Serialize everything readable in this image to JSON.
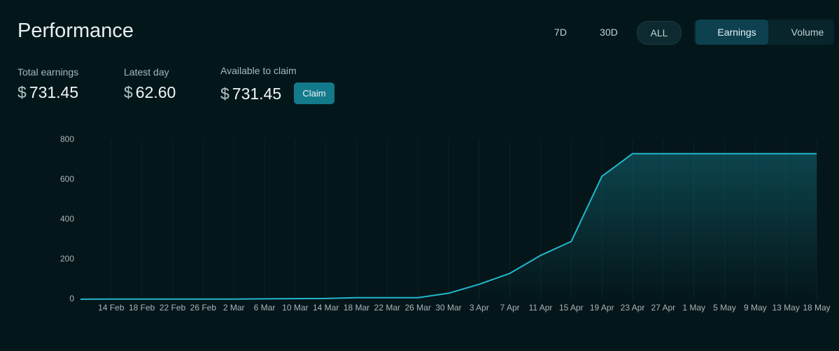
{
  "header": {
    "title": "Performance",
    "ranges": [
      "7D",
      "30D",
      "ALL"
    ],
    "metrics": [
      "Earnings",
      "Volume"
    ]
  },
  "stats": [
    {
      "label": "Total earnings",
      "currency": "$",
      "value": "731.45"
    },
    {
      "label": "Latest day",
      "currency": "$",
      "value": "62.60"
    },
    {
      "label": "Available to claim",
      "currency": "$",
      "value": "731.45"
    }
  ],
  "claim_button": "Claim",
  "chart_data": {
    "type": "line",
    "categories": [
      null,
      "14 Feb",
      "18 Feb",
      "22 Feb",
      "26 Feb",
      "2 Mar",
      "6 Mar",
      "10 Mar",
      "14 Mar",
      "18 Mar",
      "22 Mar",
      "26 Mar",
      "30 Mar",
      "3 Apr",
      "7 Apr",
      "11 Apr",
      "15 Apr",
      "19 Apr",
      "23 Apr",
      "27 Apr",
      "1 May",
      "5 May",
      "9 May",
      "13 May",
      "18 May"
    ],
    "values": [
      0,
      1,
      1,
      1,
      1,
      1,
      2,
      3,
      4,
      8,
      8,
      8,
      30,
      75,
      130,
      220,
      290,
      617,
      731,
      731,
      731,
      731,
      731,
      731,
      731
    ],
    "color": "#22b8cc",
    "ylim": [
      0,
      800
    ],
    "yticks": [
      0,
      200,
      400,
      600,
      800
    ]
  }
}
